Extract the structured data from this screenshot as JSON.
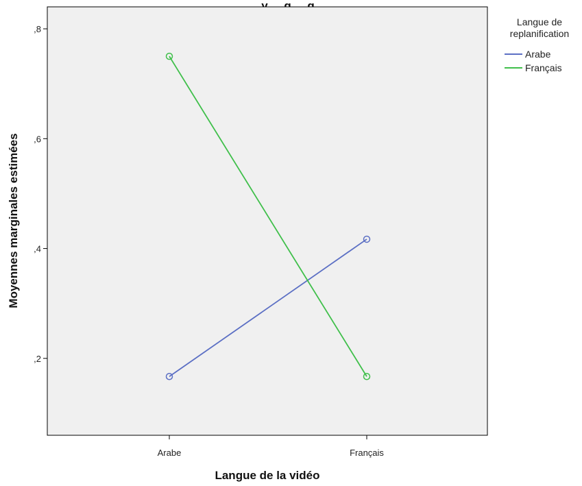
{
  "chart_data": {
    "type": "line",
    "title": "y ... g ... g",
    "xlabel": "Langue de la vidéo",
    "ylabel": "Moyennes marginales estimées",
    "categories": [
      "Arabe",
      "Français"
    ],
    "ylim": [
      0.06,
      0.84
    ],
    "yticks": [
      0.2,
      0.4,
      0.6,
      0.8
    ],
    "ytick_labels": [
      ",2",
      ",4",
      ",6",
      ",8"
    ],
    "grid": false,
    "legend": {
      "title": "Langue de replanification",
      "title_lines": [
        "Langue de",
        "replanification"
      ],
      "placement": "right"
    },
    "series": [
      {
        "name": "Arabe",
        "values": [
          0.167,
          0.417
        ],
        "color": "#5b6fc4"
      },
      {
        "name": "Français",
        "values": [
          0.75,
          0.167
        ],
        "color": "#3fbf4a"
      }
    ]
  },
  "colors": {
    "plot_background": "#f0f0f0",
    "axis": "#000000"
  }
}
